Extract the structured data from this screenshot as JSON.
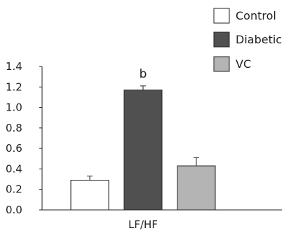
{
  "chart_data": {
    "type": "bar",
    "categories": [
      "LF/HF"
    ],
    "series": [
      {
        "name": "Control",
        "values": [
          0.29
        ],
        "error": [
          0.04
        ],
        "color": "#ffffff"
      },
      {
        "name": "Diabetic",
        "values": [
          1.17
        ],
        "error": [
          0.04
        ],
        "color": "#505050"
      },
      {
        "name": "VC",
        "values": [
          0.43
        ],
        "error": [
          0.08
        ],
        "color": "#b4b4b4"
      }
    ],
    "annotations": [
      {
        "series": "Diabetic",
        "text": "b"
      }
    ],
    "xlabel": "LF/HF",
    "ylabel": "",
    "ylim": [
      0,
      1.4
    ],
    "yticks": [
      "0.0",
      "0.2",
      "0.4",
      "0.6",
      "0.8",
      "1.0",
      "1.2",
      "1.4"
    ],
    "grid": false,
    "legend_position": "top-right"
  }
}
